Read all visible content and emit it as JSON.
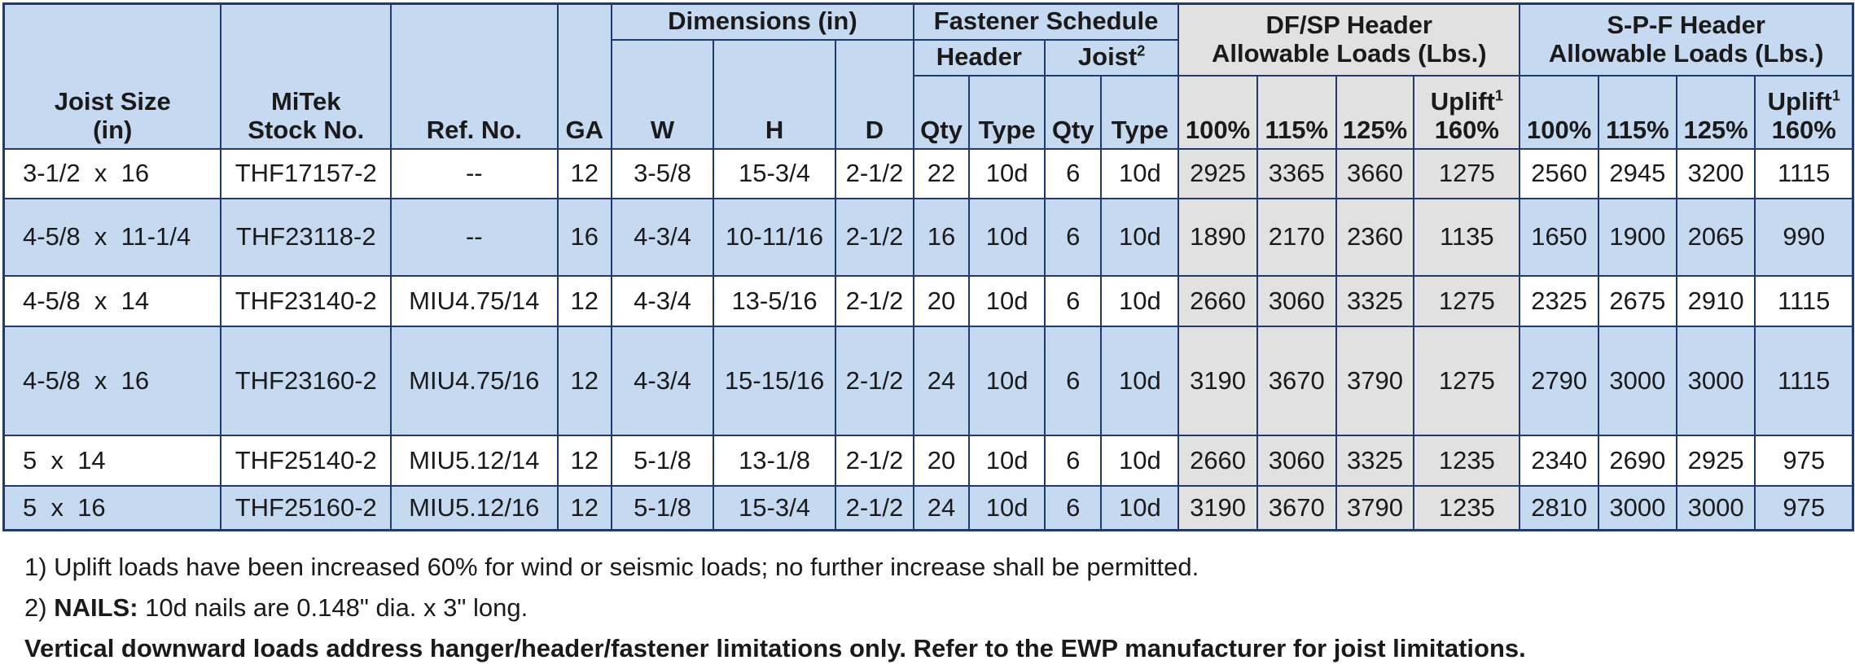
{
  "headers": {
    "joist_size": [
      "Joist Size",
      "(in)"
    ],
    "stock_no": [
      "MiTek",
      "Stock No."
    ],
    "ref_no": "Ref. No.",
    "ga": "GA",
    "dimensions": "Dimensions (in)",
    "w": "W",
    "h": "H",
    "d": "D",
    "fastener_schedule": "Fastener Schedule",
    "header": "Header",
    "joist": "Joist",
    "joist_sup": "2",
    "qty": "Qty",
    "type": "Type",
    "dfsp_header": [
      "DF/SP Header",
      "Allowable Loads (Lbs.)"
    ],
    "spf_header": [
      "S-P-F Header",
      "Allowable Loads (Lbs.)"
    ],
    "p100": "100%",
    "p115": "115%",
    "p125": "125%",
    "uplift": "Uplift",
    "uplift_sup": "1",
    "p160": "160%"
  },
  "rows": [
    [
      "3-1/2  x  16",
      "THF17157-2",
      "--",
      "12",
      "3-5/8",
      "15-3/4",
      "2-1/2",
      "22",
      "10d",
      "6",
      "10d",
      "2925",
      "3365",
      "3660",
      "1275",
      "2560",
      "2945",
      "3200",
      "1115"
    ],
    [
      "4-5/8  x  11-1/4",
      "THF23118-2",
      "--",
      "16",
      "4-3/4",
      "10-11/16",
      "2-1/2",
      "16",
      "10d",
      "6",
      "10d",
      "1890",
      "2170",
      "2360",
      "1135",
      "1650",
      "1900",
      "2065",
      "990"
    ],
    [
      "4-5/8  x  14",
      "THF23140-2",
      "MIU4.75/14",
      "12",
      "4-3/4",
      "13-5/16",
      "2-1/2",
      "20",
      "10d",
      "6",
      "10d",
      "2660",
      "3060",
      "3325",
      "1275",
      "2325",
      "2675",
      "2910",
      "1115"
    ],
    [
      "4-5/8  x  16",
      "THF23160-2",
      "MIU4.75/16",
      "12",
      "4-3/4",
      "15-15/16",
      "2-1/2",
      "24",
      "10d",
      "6",
      "10d",
      "3190",
      "3670",
      "3790",
      "1275",
      "2790",
      "3000",
      "3000",
      "1115"
    ],
    [
      "5  x  14",
      "THF25140-2",
      "MIU5.12/14",
      "12",
      "5-1/8",
      "13-1/8",
      "2-1/2",
      "20",
      "10d",
      "6",
      "10d",
      "2660",
      "3060",
      "3325",
      "1235",
      "2340",
      "2690",
      "2925",
      "975"
    ],
    [
      "5  x  16",
      "THF25160-2",
      "MIU5.12/16",
      "12",
      "5-1/8",
      "15-3/4",
      "2-1/2",
      "24",
      "10d",
      "6",
      "10d",
      "3190",
      "3670",
      "3790",
      "1235",
      "2810",
      "3000",
      "3000",
      "975"
    ]
  ],
  "notes": {
    "note1": "1) Uplift loads have been increased 60% for wind or seismic loads; no further increase shall be permitted.",
    "note2_prefix": "2) ",
    "note2_bold": "NAILS:",
    "note2_text": " 10d nails are 0.148\" dia. x 3\" long.",
    "note3": "Vertical downward loads address hanger/header/fastener limitations only. Refer to the EWP manufacturer for joist limitations."
  },
  "colors": {
    "header_blue": "#c5d9f1",
    "row_blue": "#c5d9f1",
    "gray_band": "#e1e1e1",
    "border": "#1f3a6e"
  }
}
